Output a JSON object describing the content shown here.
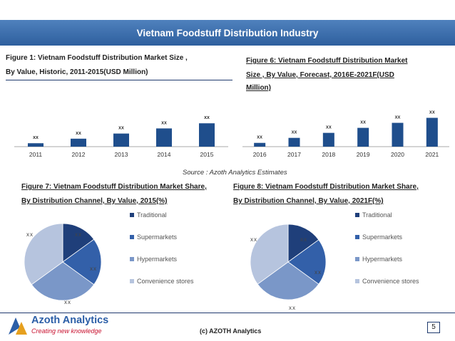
{
  "header": {
    "title": "Vietnam Foodstuff Distribution Industry"
  },
  "fig1": {
    "title_line1": "Figure 1: Vietnam Foodstuff Distribution Market Size ,",
    "title_line2": "By Value, Historic,  2011-2015(USD Million)"
  },
  "fig6": {
    "title_line1": "Figure  6:  Vietnam  Foodstuff  Distribution  Market",
    "title_line2": "Size   ,   By   Value,   Forecast,   2016E-2021F(USD",
    "title_line3": "Million)"
  },
  "fig7": {
    "title_line1": "Figure  7:  Vietnam  Foodstuff  Distribution  Market  Share,",
    "title_line2": "By Distribution Channel, By Value, 2015(%)"
  },
  "fig8": {
    "title_line1": "Figure 8: Vietnam Foodstuff Distribution Market Share,",
    "title_line2": "By Distribution Channel, By Value, 2021F(%)"
  },
  "source": "Source : Azoth Analytics Estimates",
  "legend": {
    "items": [
      "Traditional",
      "Supermarkets",
      "Hypermarkets",
      "Convenience stores"
    ]
  },
  "footer": {
    "company": "Azoth Analytics",
    "tagline": "Creating new knowledge",
    "copyright": "(c) AZOTH Analytics",
    "page": "5"
  },
  "chart_data": [
    {
      "type": "bar",
      "categories": [
        "2011",
        "2012",
        "2013",
        "2014",
        "2015"
      ],
      "values": [
        12,
        28,
        46,
        64,
        82
      ],
      "data_labels": [
        "xx",
        "xx",
        "xx",
        "xx",
        "xx"
      ],
      "ylim": [
        0,
        100
      ],
      "color": "#1f4e8c"
    },
    {
      "type": "bar",
      "categories": [
        "2016",
        "2017",
        "2018",
        "2019",
        "2020",
        "2021"
      ],
      "values": [
        12,
        28,
        44,
        60,
        76,
        92
      ],
      "data_labels": [
        "xx",
        "xx",
        "xx",
        "xx",
        "xx",
        "xx"
      ],
      "ylim": [
        0,
        100
      ],
      "color": "#1f4e8c"
    },
    {
      "type": "pie",
      "labels": [
        "Traditional",
        "Supermarkets",
        "Hypermarkets",
        "Convenience stores"
      ],
      "values": [
        15,
        20,
        30,
        35
      ],
      "data_labels": [
        "xx",
        "xx",
        "xx",
        "xx"
      ],
      "colors": [
        "#1f3f7a",
        "#3360a9",
        "#7a97c8",
        "#b6c4de"
      ]
    },
    {
      "type": "pie",
      "labels": [
        "Traditional",
        "Supermarkets",
        "Hypermarkets",
        "Convenience stores"
      ],
      "values": [
        15,
        20,
        30,
        35
      ],
      "data_labels": [
        "xx",
        "xx",
        "xx",
        "xx"
      ],
      "colors": [
        "#1f3f7a",
        "#3360a9",
        "#7a97c8",
        "#b6c4de"
      ]
    }
  ]
}
